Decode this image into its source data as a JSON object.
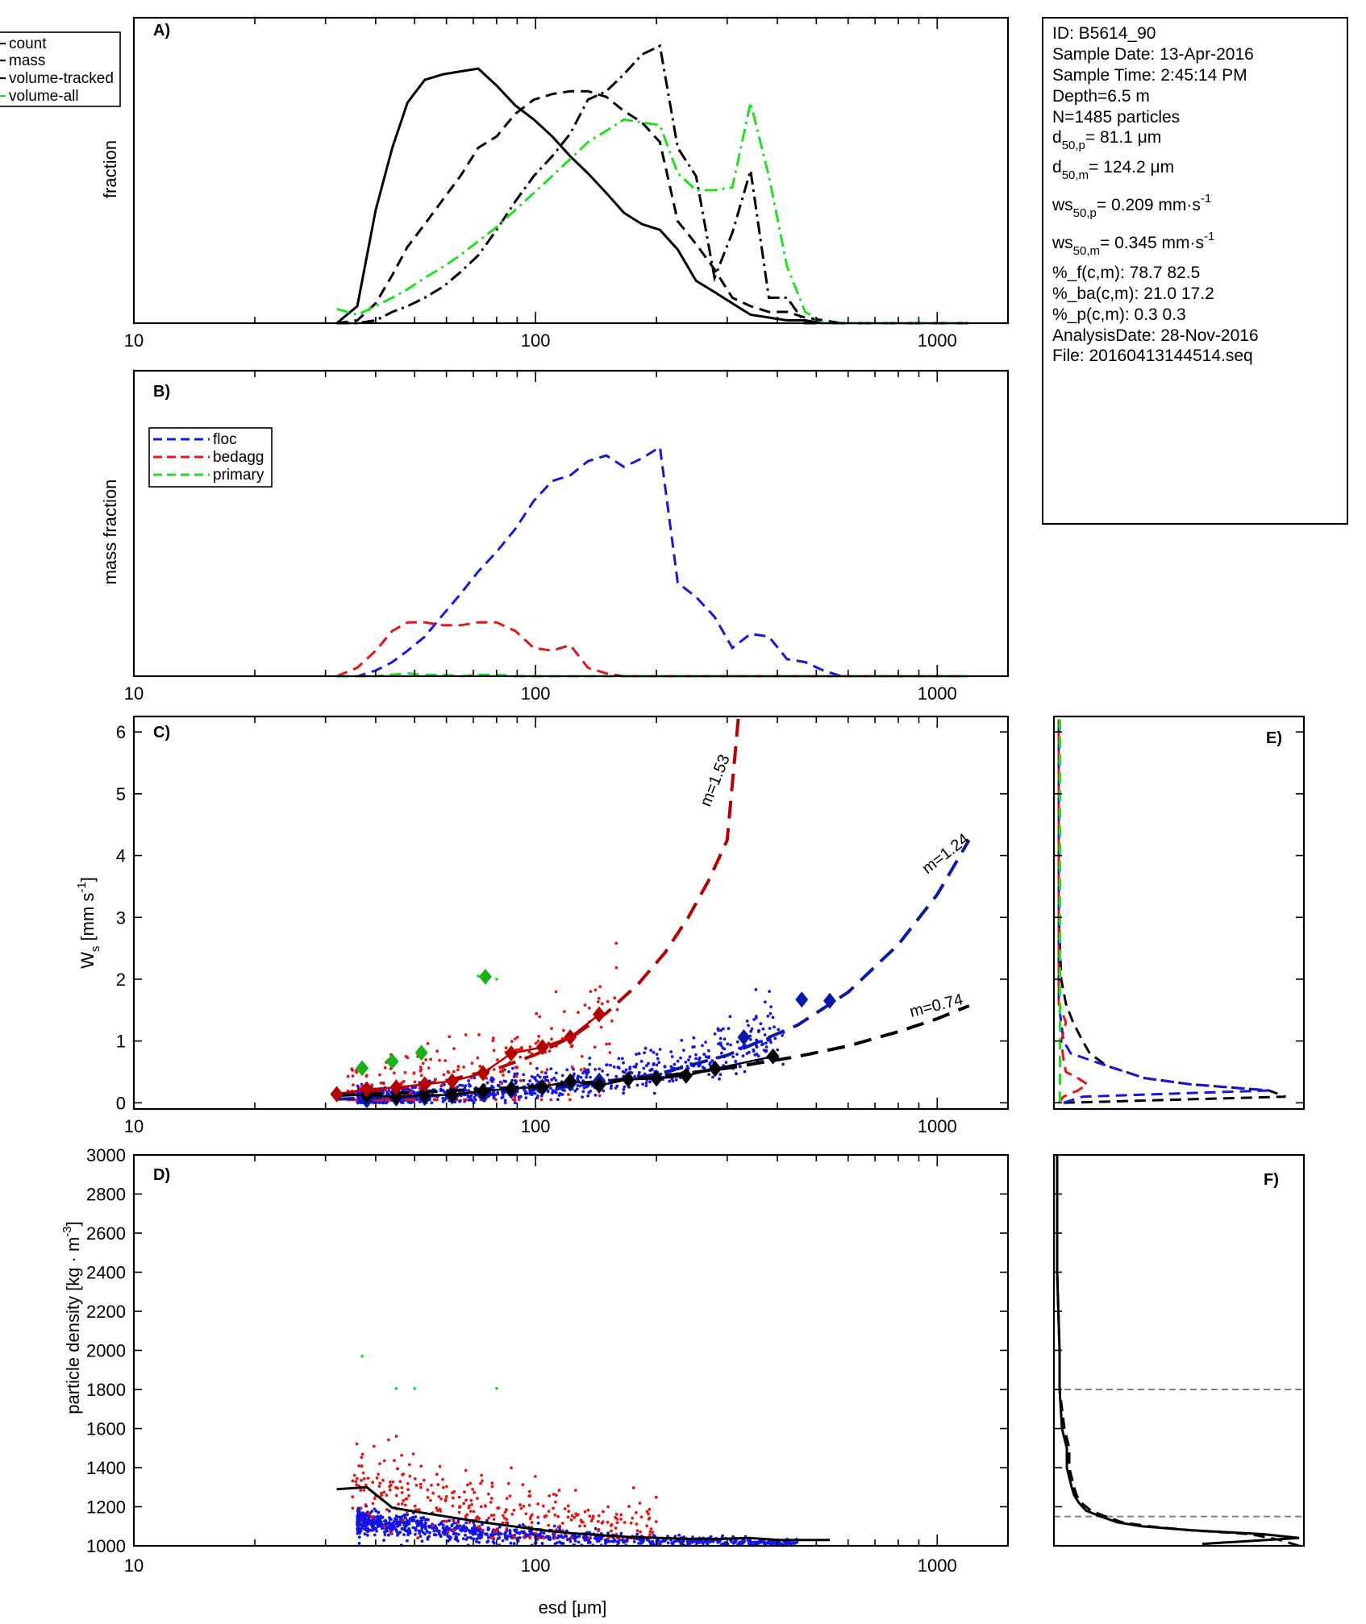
{
  "info_box": {
    "id": "ID: B5614_90",
    "sample_date": "Sample Date: 13-Apr-2016",
    "sample_time": "Sample Time:  2:45:14 PM",
    "depth": "Depth=6.5 m",
    "n": "N=1485 particles",
    "d50p_pre": "d",
    "d50p_sub": "50,p",
    "d50p_post": "=  81.1 μm",
    "d50m_pre": "d",
    "d50m_sub": "50,m",
    "d50m_post": "= 124.2 μm",
    "ws50p_pre": "ws",
    "ws50p_sub": "50,p",
    "ws50p_post": "= 0.209 mm·s",
    "ws50p_sup": "-1",
    "ws50m_pre": "ws",
    "ws50m_sub": "50,m",
    "ws50m_post": "= 0.345 mm·s",
    "ws50m_sup": "-1",
    "pf": "%_f(c,m): 78.7 82.5",
    "pba": "%_ba(c,m): 21.0 17.2",
    "pp": "%_p(c,m): 0.3 0.3",
    "analysis_date": "AnalysisDate: 28-Nov-2016",
    "file": "File: 20160413144514.seq"
  },
  "colors": {
    "black": "#000000",
    "green": "#1fe01f",
    "blue": "#1515e6",
    "red": "#e61515",
    "darkred": "#b40000",
    "darkblue": "#0a1aa8",
    "green_diamond": "#19b219",
    "gray": "#808080"
  },
  "chart_data": [
    {
      "panel": "A)",
      "type": "line",
      "ylabel": "fraction",
      "x_scale": "log",
      "x_ticks": [
        "10",
        "100",
        "1000"
      ],
      "xlim": [
        10,
        1500
      ],
      "legend_placement": "top-left (outside)",
      "x": [
        32,
        36,
        40,
        44,
        48,
        53,
        59,
        65,
        72,
        80,
        89,
        99,
        110,
        122,
        135,
        150,
        166,
        184,
        204,
        226,
        251,
        279,
        309,
        343,
        381,
        423,
        469,
        521,
        578,
        641,
        711,
        789,
        875,
        971,
        1077,
        1195
      ],
      "series": [
        {
          "name": "count",
          "style": "solid",
          "values": [
            0.0,
            0.06,
            0.4,
            0.62,
            0.78,
            0.86,
            0.88,
            0.89,
            0.9,
            0.84,
            0.77,
            0.72,
            0.66,
            0.59,
            0.53,
            0.46,
            0.39,
            0.35,
            0.33,
            0.26,
            0.15,
            0.11,
            0.07,
            0.03,
            0.02,
            0.01,
            0.01,
            0.0,
            0.0,
            0.0,
            0.0,
            0.0,
            0.0,
            0.0,
            0.0,
            0.0
          ]
        },
        {
          "name": "mass",
          "style": "dashed",
          "values": [
            0.0,
            0.01,
            0.07,
            0.17,
            0.27,
            0.35,
            0.44,
            0.52,
            0.62,
            0.66,
            0.74,
            0.79,
            0.81,
            0.82,
            0.82,
            0.8,
            0.75,
            0.71,
            0.64,
            0.36,
            0.28,
            0.19,
            0.09,
            0.06,
            0.04,
            0.04,
            0.02,
            0.01,
            0.0,
            0.0,
            0.0,
            0.0,
            0.0,
            0.0,
            0.0,
            0.0
          ]
        },
        {
          "name": "volume-tracked",
          "style": "dashdot",
          "values": [
            0.0,
            0.0,
            0.01,
            0.04,
            0.06,
            0.09,
            0.13,
            0.18,
            0.24,
            0.33,
            0.43,
            0.52,
            0.59,
            0.67,
            0.79,
            0.82,
            0.88,
            0.95,
            0.98,
            0.62,
            0.52,
            0.16,
            0.32,
            0.54,
            0.09,
            0.09,
            0.0,
            0.0,
            0.0,
            0.0,
            0.0,
            0.0,
            0.0,
            0.0,
            0.0,
            0.0
          ]
        },
        {
          "name": "volume-all",
          "style": "dashdot-green",
          "values": [
            0.05,
            0.03,
            0.06,
            0.09,
            0.12,
            0.16,
            0.2,
            0.24,
            0.29,
            0.34,
            0.4,
            0.46,
            0.52,
            0.58,
            0.64,
            0.68,
            0.72,
            0.71,
            0.7,
            0.53,
            0.47,
            0.47,
            0.48,
            0.78,
            0.52,
            0.2,
            0.04,
            0.0,
            0.0,
            0.0,
            0.0,
            0.0,
            0.0,
            0.0,
            0.0,
            0.0
          ]
        }
      ]
    },
    {
      "panel": "B)",
      "type": "line",
      "ylabel": "mass fraction",
      "x_scale": "log",
      "x_ticks": [
        "10",
        "100",
        "1000"
      ],
      "xlim": [
        10,
        1500
      ],
      "legend_placement": "top-left",
      "x": [
        32,
        36,
        40,
        44,
        48,
        53,
        59,
        65,
        72,
        80,
        89,
        99,
        110,
        122,
        135,
        150,
        166,
        184,
        204,
        226,
        251,
        279,
        309,
        343,
        381,
        423,
        469,
        521,
        578,
        641,
        711,
        789,
        875,
        971,
        1077,
        1195
      ],
      "series": [
        {
          "name": "floc",
          "style": "dashed",
          "values": [
            0.0,
            0.0,
            0.02,
            0.05,
            0.09,
            0.14,
            0.22,
            0.29,
            0.37,
            0.44,
            0.52,
            0.62,
            0.69,
            0.71,
            0.76,
            0.78,
            0.74,
            0.77,
            0.81,
            0.33,
            0.28,
            0.21,
            0.1,
            0.15,
            0.14,
            0.06,
            0.05,
            0.02,
            0.0,
            0.0,
            0.0,
            0.0,
            0.0,
            0.0,
            0.0,
            0.0
          ]
        },
        {
          "name": "bedagg",
          "style": "dashed",
          "values": [
            0.0,
            0.03,
            0.09,
            0.16,
            0.19,
            0.19,
            0.18,
            0.18,
            0.19,
            0.19,
            0.16,
            0.1,
            0.09,
            0.11,
            0.03,
            0.01,
            0.0,
            0.0,
            0.0,
            0.0,
            0.0,
            0.0,
            0.0,
            0.0,
            0.0,
            0.0,
            0.0,
            0.0,
            0.0,
            0.0,
            0.0,
            0.0,
            0.0,
            0.0,
            0.0,
            0.0
          ]
        },
        {
          "name": "primary",
          "style": "dashed",
          "values": [
            0.0,
            0.0,
            0.0,
            0.005,
            0.01,
            0.005,
            0.005,
            0.0,
            0.005,
            0.005,
            0.0,
            0.0,
            0.0,
            0.0,
            0.0,
            0.0,
            0.0,
            0.0,
            0.0,
            0.0,
            0.0,
            0.0,
            0.0,
            0.0,
            0.0,
            0.0,
            0.0,
            0.0,
            0.0,
            0.0,
            0.0,
            0.0,
            0.0,
            0.0,
            0.0,
            0.0
          ]
        }
      ]
    },
    {
      "panel": "C)",
      "type": "scatter",
      "x_scale": "log",
      "x_ticks": [
        "10",
        "100",
        "1000"
      ],
      "y_ticks": [
        "0",
        "1",
        "2",
        "3",
        "4",
        "5",
        "6"
      ],
      "xlim": [
        10,
        1500
      ],
      "ylim": [
        -0.1,
        6.25
      ],
      "ylabel_base": "W",
      "ylabel_sub": "s",
      "ylabel_unit": " [mm s",
      "ylabel_sup": "-1",
      "ylabel_close": "]",
      "fits": [
        {
          "label": "m=1.53",
          "x": [
            32,
            45,
            60,
            80,
            100,
            125,
            150,
            180,
            210,
            240,
            270,
            300,
            320
          ],
          "y": [
            0.14,
            0.23,
            0.36,
            0.55,
            0.78,
            1.09,
            1.45,
            1.92,
            2.43,
            3.0,
            3.6,
            4.25,
            6.3
          ]
        },
        {
          "label": "m=1.24",
          "x": [
            32,
            50,
            80,
            120,
            200,
            300,
            450,
            600,
            800,
            1000,
            1200
          ],
          "y": [
            0.06,
            0.1,
            0.17,
            0.26,
            0.46,
            0.77,
            1.26,
            1.79,
            2.56,
            3.37,
            4.25
          ]
        },
        {
          "label": "m=0.74",
          "x": [
            32,
            50,
            80,
            120,
            200,
            300,
            450,
            600,
            800,
            1000,
            1200
          ],
          "y": [
            0.12,
            0.17,
            0.23,
            0.3,
            0.42,
            0.56,
            0.75,
            0.92,
            1.15,
            1.36,
            1.57
          ]
        }
      ],
      "diamonds_red": [
        [
          32,
          0.14
        ],
        [
          38,
          0.22
        ],
        [
          45,
          0.25
        ],
        [
          53,
          0.3
        ],
        [
          62,
          0.35
        ],
        [
          74,
          0.48
        ],
        [
          87,
          0.8
        ],
        [
          104,
          0.9
        ],
        [
          122,
          1.06
        ],
        [
          144,
          1.43
        ]
      ],
      "diamonds_black": [
        [
          32,
          0.14
        ],
        [
          38,
          0.12
        ],
        [
          45,
          0.1
        ],
        [
          53,
          0.12
        ],
        [
          62,
          0.13
        ],
        [
          74,
          0.19
        ],
        [
          87,
          0.23
        ],
        [
          104,
          0.26
        ],
        [
          122,
          0.35
        ],
        [
          144,
          0.28
        ],
        [
          170,
          0.38
        ],
        [
          200,
          0.39
        ],
        [
          237,
          0.44
        ],
        [
          280,
          0.55
        ],
        [
          390,
          0.75
        ]
      ],
      "diamonds_blue": [
        [
          38,
          0.04
        ],
        [
          45,
          0.07
        ],
        [
          53,
          0.08
        ],
        [
          62,
          0.1
        ],
        [
          74,
          0.14
        ],
        [
          87,
          0.19
        ],
        [
          104,
          0.24
        ],
        [
          122,
          0.31
        ],
        [
          144,
          0.36
        ],
        [
          170,
          0.38
        ],
        [
          200,
          0.41
        ],
        [
          237,
          0.44
        ],
        [
          280,
          0.55
        ],
        [
          330,
          1.06
        ],
        [
          460,
          1.67
        ],
        [
          540,
          1.65
        ]
      ],
      "diamonds_green": [
        [
          37,
          0.56
        ],
        [
          44,
          0.67
        ],
        [
          52,
          0.81
        ],
        [
          75,
          2.04
        ]
      ]
    },
    {
      "panel": "D)",
      "type": "scatter",
      "x_scale": "log",
      "x_ticks": [
        "10",
        "100",
        "1000"
      ],
      "y_ticks": [
        "1000",
        "1200",
        "1400",
        "1600",
        "1800",
        "2000",
        "2200",
        "2400",
        "2600",
        "2800",
        "3000"
      ],
      "xlim": [
        10,
        1500
      ],
      "ylim": [
        1000,
        3000
      ],
      "ylabel_pre": "particle density [kg · m",
      "ylabel_sup": "-3",
      "ylabel_close": "]",
      "xlabel": "esd [μm]",
      "median_line": {
        "x": [
          32,
          38,
          44,
          52,
          62,
          74,
          88,
          104,
          122,
          145,
          172,
          204,
          242,
          287,
          340,
          403,
          478,
          540
        ],
        "y": [
          1290,
          1300,
          1195,
          1170,
          1145,
          1120,
          1100,
          1080,
          1065,
          1055,
          1045,
          1040,
          1035,
          1035,
          1040,
          1030,
          1030,
          1030
        ]
      }
    },
    {
      "panel": "E)",
      "type": "line",
      "ylim": [
        -0.1,
        6.25
      ],
      "series": [
        {
          "name": "count",
          "style": "dashed",
          "y": [
            0.0,
            0.1,
            0.2,
            0.3,
            0.4,
            0.6,
            0.8,
            1.0,
            1.3,
            1.6,
            2.0,
            3.0,
            6.2
          ],
          "values": [
            0.02,
            0.95,
            0.88,
            0.55,
            0.36,
            0.2,
            0.13,
            0.1,
            0.06,
            0.03,
            0.01,
            0.0,
            0.0
          ]
        },
        {
          "name": "floc",
          "style": "dashed",
          "y": [
            0.0,
            0.1,
            0.2,
            0.3,
            0.4,
            0.6,
            0.8,
            1.0,
            1.3,
            1.6,
            2.0,
            3.0,
            6.2
          ],
          "values": [
            0.02,
            0.1,
            0.88,
            0.55,
            0.36,
            0.2,
            0.05,
            0.02,
            0.01,
            0.0,
            0.0,
            0.0,
            0.0
          ]
        },
        {
          "name": "bedagg",
          "style": "dashed",
          "y": [
            0.0,
            0.1,
            0.2,
            0.3,
            0.4,
            0.5,
            0.7,
            1.0,
            1.3,
            1.6,
            3.0,
            6.2
          ],
          "values": [
            0.0,
            0.02,
            0.08,
            0.12,
            0.08,
            0.03,
            0.02,
            0.01,
            0.03,
            0.0,
            0.0,
            0.0
          ]
        },
        {
          "name": "primary",
          "style": "dashed",
          "y": [
            0.0,
            2.0,
            6.2
          ],
          "values": [
            0.005,
            0.005,
            0.005
          ]
        }
      ]
    },
    {
      "panel": "F)",
      "type": "line",
      "ylim": [
        1000,
        3000
      ],
      "reference_levels": [
        1150,
        1800
      ],
      "series": [
        {
          "name": "count",
          "style": "solid",
          "y": [
            1010,
            1040,
            1060,
            1080,
            1100,
            1120,
            1150,
            1180,
            1220,
            1260,
            1300,
            1350,
            1400,
            1450,
            1500,
            1550,
            1600,
            1800,
            2000,
            2400,
            3000
          ],
          "values": [
            0.6,
            1.0,
            0.85,
            0.55,
            0.35,
            0.25,
            0.18,
            0.12,
            0.09,
            0.07,
            0.06,
            0.05,
            0.04,
            0.04,
            0.04,
            0.03,
            0.02,
            0.01,
            0.01,
            0.0,
            0.0
          ]
        },
        {
          "name": "mass",
          "style": "dashed",
          "y": [
            1000,
            1030,
            1060,
            1080,
            1100,
            1120,
            1150,
            1180,
            1220,
            1260,
            1300,
            1350,
            1400,
            1450,
            1500,
            1550,
            1600,
            1800,
            2000,
            2400,
            3000
          ],
          "values": [
            1.0,
            0.92,
            0.8,
            0.55,
            0.38,
            0.27,
            0.2,
            0.14,
            0.1,
            0.08,
            0.07,
            0.06,
            0.05,
            0.05,
            0.05,
            0.04,
            0.03,
            0.01,
            0.01,
            0.0,
            0.0
          ]
        }
      ]
    }
  ]
}
